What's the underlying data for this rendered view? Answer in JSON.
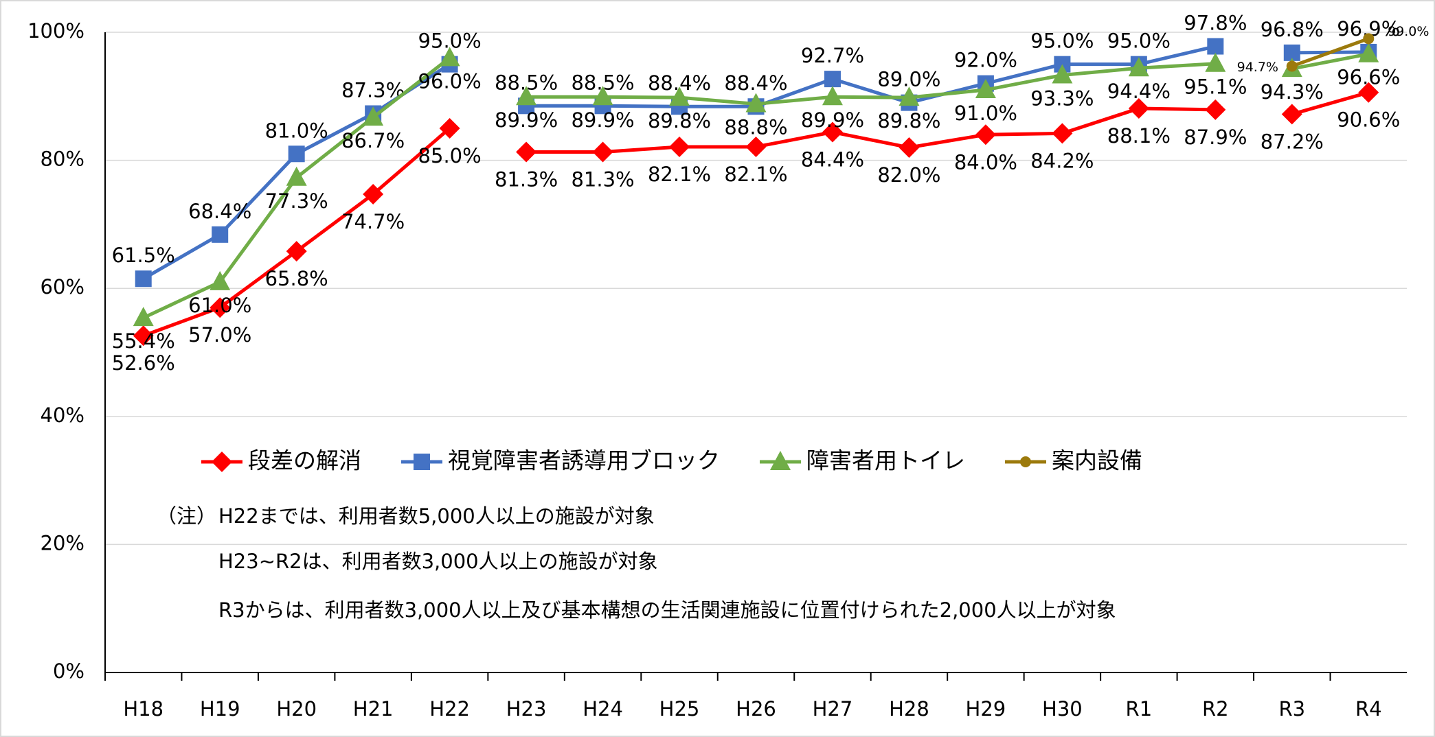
{
  "chart_data": {
    "type": "line",
    "categories": [
      "H18",
      "H19",
      "H20",
      "H21",
      "H22",
      "H23",
      "H24",
      "H25",
      "H26",
      "H27",
      "H28",
      "H29",
      "H30",
      "R1",
      "R2",
      "R3",
      "R4"
    ],
    "line_breaks_after": [
      4,
      14
    ],
    "series": [
      {
        "name": "段差の解消",
        "color": "#ff0000",
        "marker": "diamond",
        "values": [
          52.6,
          57.0,
          65.8,
          74.7,
          85.0,
          81.3,
          81.3,
          82.1,
          82.1,
          84.4,
          82.0,
          84.0,
          84.2,
          88.1,
          87.9,
          87.2,
          90.6
        ],
        "value_labels": [
          "52.6%",
          "57.0%",
          "65.8%",
          "74.7%",
          "85.0%",
          "81.3%",
          "81.3%",
          "82.1%",
          "82.1%",
          "84.4%",
          "82.0%",
          "84.0%",
          "84.2%",
          "88.1%",
          "87.9%",
          "87.2%",
          "90.6%"
        ]
      },
      {
        "name": "視覚障害者誘導用ブロック",
        "color": "#4472c4",
        "marker": "square",
        "values": [
          61.5,
          68.4,
          81.0,
          87.3,
          95.0,
          88.5,
          88.5,
          88.4,
          88.4,
          92.7,
          89.0,
          92.0,
          95.0,
          95.0,
          97.8,
          96.8,
          96.9
        ],
        "value_labels": [
          "61.5%",
          "68.4%",
          "81.0%",
          "87.3%",
          "95.0%",
          "88.5%",
          "88.5%",
          "88.4%",
          "88.4%",
          "92.7%",
          "89.0%",
          "92.0%",
          "95.0%",
          "95.0%",
          "97.8%",
          "96.8%",
          "96.9%"
        ]
      },
      {
        "name": "障害者用トイレ",
        "color": "#70ad47",
        "marker": "triangle",
        "values": [
          55.4,
          61.0,
          77.3,
          86.7,
          96.0,
          89.9,
          89.9,
          89.8,
          88.8,
          89.9,
          89.8,
          91.0,
          93.3,
          94.4,
          95.1,
          94.3,
          96.6
        ],
        "value_labels": [
          "55.4%",
          "61.0%",
          "77.3%",
          "86.7%",
          "96.0%",
          "89.9%",
          "89.9%",
          "89.8%",
          "88.8%",
          "89.9%",
          "89.8%",
          "91.0%",
          "93.3%",
          "94.4%",
          "95.1%",
          "94.3%",
          "96.6%"
        ]
      },
      {
        "name": "案内設備",
        "color": "#9c7a0c",
        "marker": "circle",
        "values": [
          null,
          null,
          null,
          null,
          null,
          null,
          null,
          null,
          null,
          null,
          null,
          null,
          null,
          null,
          null,
          94.7,
          99.0
        ],
        "value_labels": [
          null,
          null,
          null,
          null,
          null,
          null,
          null,
          null,
          null,
          null,
          null,
          null,
          null,
          null,
          null,
          "94.7%",
          "99.0%"
        ]
      }
    ],
    "ylim": [
      0,
      100
    ],
    "yticks": [
      {
        "value": 0,
        "label": "0%"
      },
      {
        "value": 20,
        "label": "20%"
      },
      {
        "value": 40,
        "label": "40%"
      },
      {
        "value": 60,
        "label": "60%"
      },
      {
        "value": 80,
        "label": "80%"
      },
      {
        "value": 100,
        "label": "100%"
      }
    ],
    "grid": true,
    "notes": [
      "（注）",
      "H22までは、利用者数5,000人以上の施設が対象",
      "H23~R2は、利用者数3,000人以上の施設が対象",
      "R3からは、利用者数3,000人以上及び基本構想の生活関連施設に位置付けられた2,000人以上が対象"
    ]
  }
}
